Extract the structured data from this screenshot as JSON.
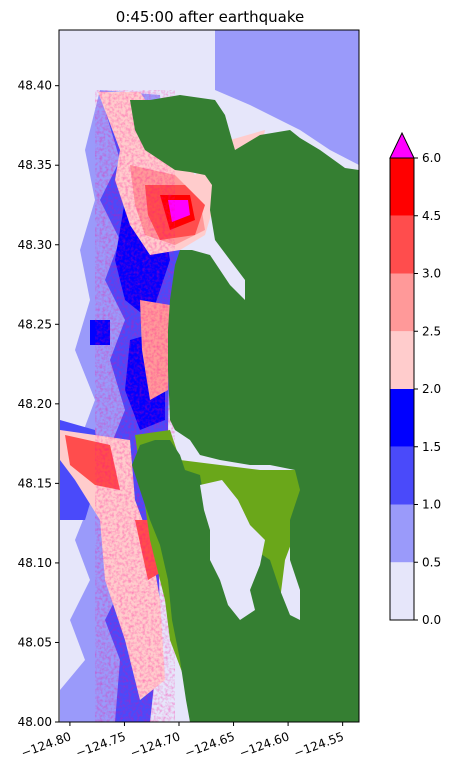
{
  "chart_data": {
    "type": "heatmap",
    "title": "0:45:00 after earthquake",
    "xlabel": "",
    "ylabel": "",
    "xlim": [
      -124.81,
      -124.535
    ],
    "ylim": [
      48.0,
      48.435
    ],
    "x_ticks": [
      {
        "value": -124.8,
        "label": "−124.80"
      },
      {
        "value": -124.75,
        "label": "−124.75"
      },
      {
        "value": -124.7,
        "label": "−124.70"
      },
      {
        "value": -124.65,
        "label": "−124.65"
      },
      {
        "value": -124.6,
        "label": "−124.60"
      },
      {
        "value": -124.55,
        "label": "−124.55"
      }
    ],
    "y_ticks": [
      {
        "value": 48.0,
        "label": "48.00"
      },
      {
        "value": 48.05,
        "label": "48.05"
      },
      {
        "value": 48.1,
        "label": "48.10"
      },
      {
        "value": 48.15,
        "label": "48.15"
      },
      {
        "value": 48.2,
        "label": "48.20"
      },
      {
        "value": 48.25,
        "label": "48.25"
      },
      {
        "value": 48.3,
        "label": "48.30"
      },
      {
        "value": 48.35,
        "label": "48.35"
      },
      {
        "value": 48.4,
        "label": "48.40"
      }
    ],
    "colorbar": {
      "levels": [
        {
          "min": 0.0,
          "max": 0.5,
          "color": "#e6e6fa"
        },
        {
          "min": 0.5,
          "max": 1.0,
          "color": "#9a9afa"
        },
        {
          "min": 1.0,
          "max": 1.5,
          "color": "#4a4afa"
        },
        {
          "min": 1.5,
          "max": 2.0,
          "color": "#0000ff"
        },
        {
          "min": 2.0,
          "max": 2.5,
          "color": "#ffcccc"
        },
        {
          "min": 2.5,
          "max": 3.0,
          "color": "#ff9999"
        },
        {
          "min": 3.0,
          "max": 4.5,
          "color": "#ff4d4d"
        },
        {
          "min": 4.5,
          "max": 6.0,
          "color": "#ff0000"
        }
      ],
      "over_color": "#ff00ff",
      "tick_labels": [
        "0.0",
        "0.5",
        "1.0",
        "1.5",
        "2.0",
        "2.5",
        "3.0",
        "4.5",
        "6.0"
      ],
      "extend": "max"
    },
    "land_colors": {
      "upland": "#357f32",
      "lowland": "#6aa71a"
    },
    "grid": false
  }
}
